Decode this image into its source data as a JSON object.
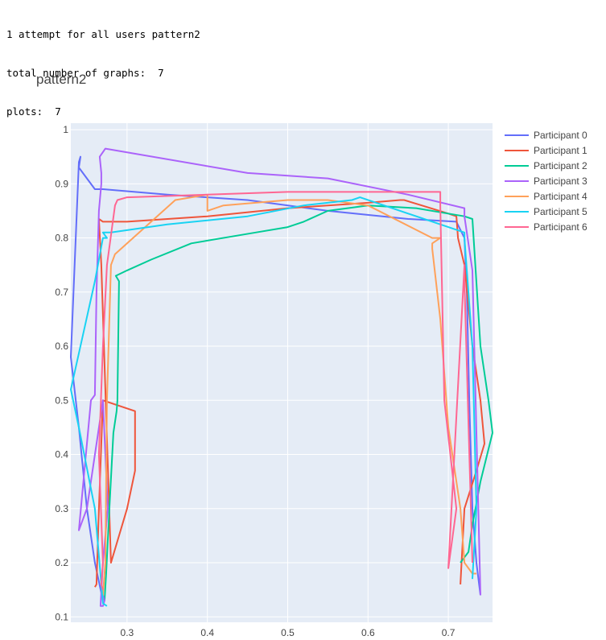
{
  "console": {
    "line1": "1 attempt for all users pattern2",
    "line2": "total number of graphs:  7",
    "line3": "plots:  7"
  },
  "chart_data": {
    "type": "line",
    "title": "pattern2",
    "xlabel": "",
    "ylabel": "",
    "xlim": [
      0.23,
      0.755
    ],
    "ylim": [
      0.09,
      1.012
    ],
    "x_ticks": [
      0.3,
      0.4,
      0.5,
      0.6,
      0.7
    ],
    "y_ticks": [
      0.1,
      0.2,
      0.3,
      0.4,
      0.5,
      0.6,
      0.7,
      0.8,
      0.9,
      1
    ],
    "x_tick_labels": [
      "0.3",
      "0.4",
      "0.5",
      "0.6",
      "0.7"
    ],
    "y_tick_labels": [
      "0.1",
      "0.2",
      "0.3",
      "0.4",
      "0.5",
      "0.6",
      "0.7",
      "0.8",
      "0.9",
      "1"
    ],
    "grid": true,
    "legend_position": "top-right",
    "series": [
      {
        "name": "Participant 0",
        "color": "#636efa",
        "x": [
          0.27,
          0.26,
          0.25,
          0.24,
          0.23,
          0.24,
          0.242,
          0.24,
          0.26,
          0.27,
          0.35,
          0.45,
          0.55,
          0.65,
          0.71,
          0.72,
          0.723,
          0.726,
          0.73,
          0.735,
          0.74
        ],
        "y": [
          0.13,
          0.2,
          0.3,
          0.45,
          0.58,
          0.94,
          0.95,
          0.93,
          0.89,
          0.89,
          0.88,
          0.87,
          0.85,
          0.835,
          0.83,
          0.8,
          0.7,
          0.5,
          0.3,
          0.2,
          0.14
        ]
      },
      {
        "name": "Participant 1",
        "color": "#ef553b",
        "x": [
          0.26,
          0.262,
          0.265,
          0.27,
          0.31,
          0.31,
          0.3,
          0.28,
          0.268,
          0.265,
          0.27,
          0.3,
          0.4,
          0.5,
          0.6,
          0.64,
          0.645,
          0.7,
          0.71,
          0.712,
          0.72,
          0.73,
          0.74,
          0.745,
          0.735,
          0.72,
          0.715
        ],
        "y": [
          0.155,
          0.16,
          0.3,
          0.5,
          0.48,
          0.37,
          0.3,
          0.2,
          0.75,
          0.835,
          0.83,
          0.83,
          0.84,
          0.855,
          0.865,
          0.87,
          0.87,
          0.845,
          0.84,
          0.8,
          0.75,
          0.6,
          0.5,
          0.42,
          0.37,
          0.3,
          0.16
        ]
      },
      {
        "name": "Participant 2",
        "color": "#00cc96",
        "x": [
          0.272,
          0.274,
          0.278,
          0.283,
          0.287,
          0.288,
          0.29,
          0.286,
          0.3,
          0.33,
          0.38,
          0.46,
          0.5,
          0.52,
          0.55,
          0.6,
          0.66,
          0.72,
          0.73,
          0.73,
          0.74,
          0.75,
          0.755,
          0.74,
          0.73,
          0.725,
          0.72,
          0.715
        ],
        "y": [
          0.13,
          0.18,
          0.3,
          0.44,
          0.48,
          0.5,
          0.72,
          0.73,
          0.74,
          0.76,
          0.79,
          0.81,
          0.82,
          0.83,
          0.85,
          0.86,
          0.855,
          0.84,
          0.835,
          0.835,
          0.6,
          0.5,
          0.44,
          0.35,
          0.27,
          0.22,
          0.21,
          0.2
        ]
      },
      {
        "name": "Participant 3",
        "color": "#ab63fa",
        "x": [
          0.27,
          0.272,
          0.27,
          0.267,
          0.27,
          0.276,
          0.27,
          0.25,
          0.24,
          0.255,
          0.26,
          0.262,
          0.265,
          0.268,
          0.268,
          0.266,
          0.273,
          0.45,
          0.55,
          0.65,
          0.72,
          0.72,
          0.73,
          0.74
        ],
        "y": [
          0.14,
          0.13,
          0.12,
          0.12,
          0.2,
          0.3,
          0.5,
          0.3,
          0.26,
          0.5,
          0.51,
          0.7,
          0.85,
          0.9,
          0.92,
          0.95,
          0.965,
          0.92,
          0.91,
          0.88,
          0.855,
          0.84,
          0.74,
          0.14
        ]
      },
      {
        "name": "Participant 4",
        "color": "#ffa15a",
        "x": [
          0.27,
          0.273,
          0.275,
          0.28,
          0.285,
          0.36,
          0.4,
          0.4,
          0.42,
          0.5,
          0.55,
          0.6,
          0.68,
          0.69,
          0.68,
          0.68,
          0.69,
          0.7,
          0.715,
          0.72,
          0.73,
          0.735
        ],
        "y": [
          0.14,
          0.2,
          0.5,
          0.75,
          0.77,
          0.87,
          0.88,
          0.85,
          0.86,
          0.87,
          0.87,
          0.86,
          0.8,
          0.8,
          0.79,
          0.78,
          0.65,
          0.45,
          0.3,
          0.2,
          0.18,
          0.18
        ]
      },
      {
        "name": "Participant 5",
        "color": "#19d3f3",
        "x": [
          0.275,
          0.27,
          0.26,
          0.24,
          0.23,
          0.26,
          0.27,
          0.275,
          0.27,
          0.28,
          0.35,
          0.45,
          0.52,
          0.58,
          0.59,
          0.62,
          0.7,
          0.72,
          0.72,
          0.73,
          0.735,
          0.73
        ],
        "y": [
          0.12,
          0.125,
          0.3,
          0.45,
          0.52,
          0.72,
          0.8,
          0.8,
          0.81,
          0.81,
          0.825,
          0.84,
          0.86,
          0.87,
          0.875,
          0.86,
          0.82,
          0.81,
          0.8,
          0.6,
          0.3,
          0.17
        ]
      },
      {
        "name": "Participant 6",
        "color": "#ff6692",
        "x": [
          0.27,
          0.268,
          0.27,
          0.265,
          0.27,
          0.275,
          0.285,
          0.288,
          0.3,
          0.4,
          0.5,
          0.6,
          0.64,
          0.69,
          0.69,
          0.695,
          0.71,
          0.7,
          0.7,
          0.72,
          0.72,
          0.73
        ],
        "y": [
          0.15,
          0.16,
          0.2,
          0.4,
          0.6,
          0.75,
          0.86,
          0.87,
          0.875,
          0.88,
          0.885,
          0.885,
          0.885,
          0.885,
          0.86,
          0.5,
          0.3,
          0.19,
          0.19,
          0.75,
          0.72,
          0.2
        ]
      }
    ]
  }
}
